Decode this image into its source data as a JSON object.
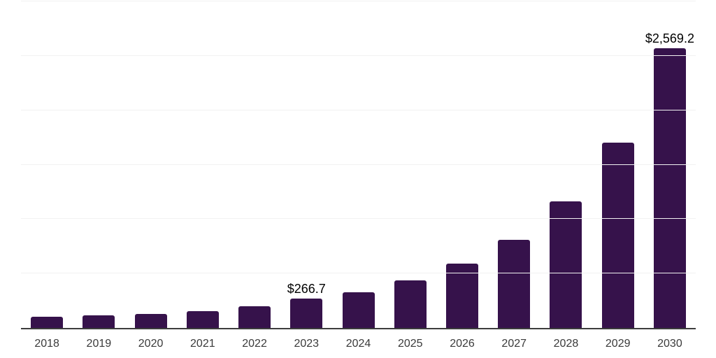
{
  "chart_data": {
    "type": "bar",
    "title": "",
    "xlabel": "",
    "ylabel": "",
    "categories": [
      "2018",
      "2019",
      "2020",
      "2021",
      "2022",
      "2023",
      "2024",
      "2025",
      "2026",
      "2027",
      "2028",
      "2029",
      "2030"
    ],
    "values": [
      101,
      115,
      130,
      157,
      200,
      266.7,
      330,
      436,
      588,
      810,
      1162,
      1700,
      2569.2
    ],
    "value_labels": [
      "",
      "",
      "",
      "",
      "",
      "$266.7",
      "",
      "",
      "",
      "",
      "",
      "",
      "$2,569.2"
    ],
    "ylim": [
      0,
      3000
    ],
    "gridline_step": 500,
    "grid": "horizontal",
    "legend": "none",
    "colors": {
      "bar": "#36124B",
      "gridline": "#F2F2F2",
      "axis_line": "#3D3D3D",
      "x_tick_label": "#3A3A3A",
      "value_label": "#000000",
      "background": "#FFFFFF"
    }
  }
}
